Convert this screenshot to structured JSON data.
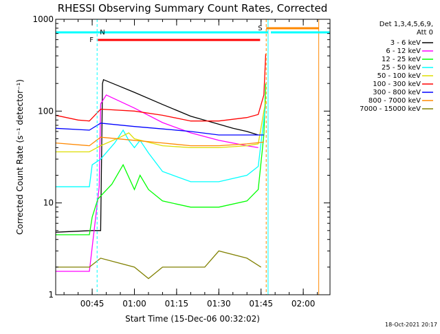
{
  "chart_data": {
    "type": "line",
    "title": "RHESSI Observing Summary Count Rates, Corrected",
    "xlabel": "Start Time (15-Dec-06 00:32:02)",
    "ylabel": "Corrected Count Rate (s⁻¹ detector⁻¹)",
    "y_scale": "log",
    "ylim": [
      1,
      1000
    ],
    "y_tick_labels": [
      "1",
      "10",
      "100",
      "1000"
    ],
    "xlim": [
      "00:32:02",
      "02:09:30"
    ],
    "x_tick_labels": [
      "00:45",
      "01:00",
      "01:15",
      "01:30",
      "01:45",
      "02:00"
    ],
    "legend_title": "Det 1,3,4,5,6,9,",
    "legend_subtitle": "Att 0",
    "legend_position": "right",
    "colors": {
      "band_3_6": "#000000",
      "band_6_12": "#ff00ff",
      "band_12_25": "#00ff00",
      "band_25_50": "#00ffff",
      "band_50_100": "#dddd00",
      "band_100_300": "#ff0000",
      "band_300_800": "#0000ff",
      "band_800_7000": "#ff8800",
      "band_7000_15000": "#808000",
      "saa": "#00ffff",
      "flare": "#ff0000",
      "night": "#ff8800"
    },
    "series": [
      {
        "name": "3 - 6 keV",
        "color": "#000000",
        "x": [
          "00:32:02",
          "00:45:00",
          "00:48:00",
          "00:48:40",
          "00:49:00",
          "00:55:00",
          "01:00:00",
          "01:10:00",
          "01:20:00",
          "01:30:00",
          "01:35:00",
          "01:40:00",
          "01:44:00"
        ],
        "y": [
          4.8,
          5.0,
          5.0,
          200,
          220,
          185,
          160,
          118,
          88,
          72,
          65,
          60,
          55
        ]
      },
      {
        "name": "6 - 12 keV",
        "color": "#ff00ff",
        "x": [
          "00:32:02",
          "00:44:00",
          "00:47:30",
          "00:48:00",
          "00:50:00",
          "01:00:00",
          "01:10:00",
          "01:20:00",
          "01:30:00",
          "01:40:00",
          "01:44:00"
        ],
        "y": [
          1.8,
          1.8,
          15,
          120,
          150,
          108,
          75,
          58,
          48,
          42,
          40
        ]
      },
      {
        "name": "12 - 25 keV",
        "color": "#00ff00",
        "x": [
          "00:32:02",
          "00:44:00",
          "00:45:00",
          "00:47:00",
          "00:52:00",
          "00:56:00",
          "01:00:00",
          "01:02:00",
          "01:05:00",
          "01:10:00",
          "01:20:00",
          "01:30:00",
          "01:40:00",
          "01:44:00",
          "01:46:00",
          "01:46:40"
        ],
        "y": [
          4.5,
          4.5,
          7,
          11,
          16,
          26,
          14,
          20,
          14,
          10.5,
          9,
          9,
          10.5,
          14,
          55,
          200
        ]
      },
      {
        "name": "25 - 50 keV",
        "color": "#00ffff",
        "x": [
          "00:32:02",
          "00:44:00",
          "00:45:00",
          "00:48:00",
          "00:53:00",
          "00:56:00",
          "00:58:00",
          "01:00:00",
          "01:02:00",
          "01:05:00",
          "01:10:00",
          "01:20:00",
          "01:30:00",
          "01:40:00",
          "01:44:00",
          "01:46:40"
        ],
        "y": [
          15,
          15,
          26,
          30,
          45,
          62,
          48,
          40,
          48,
          35,
          22,
          17,
          17,
          20,
          25,
          120
        ]
      },
      {
        "name": "50 - 100 keV",
        "color": "#dddd00",
        "x": [
          "00:32:02",
          "00:44:00",
          "00:48:00",
          "00:55:00",
          "00:58:00",
          "01:00:00",
          "01:10:00",
          "01:20:00",
          "01:30:00",
          "01:40:00",
          "01:44:00",
          "01:46:40"
        ],
        "y": [
          36,
          36,
          42,
          52,
          58,
          50,
          42,
          40,
          40,
          42,
          44,
          130
        ]
      },
      {
        "name": "100 - 300 keV",
        "color": "#ff0000",
        "x": [
          "00:32:02",
          "00:40:00",
          "00:44:00",
          "00:48:00",
          "01:00:00",
          "01:10:00",
          "01:20:00",
          "01:30:00",
          "01:40:00",
          "01:44:00",
          "01:46:00",
          "01:46:40"
        ],
        "y": [
          90,
          80,
          78,
          105,
          100,
          90,
          78,
          78,
          85,
          92,
          150,
          420
        ]
      },
      {
        "name": "300 - 800 keV",
        "color": "#0000ff",
        "x": [
          "00:32:02",
          "00:44:00",
          "00:48:00",
          "01:00:00",
          "01:10:00",
          "01:20:00",
          "01:30:00",
          "01:40:00",
          "01:46:00"
        ],
        "y": [
          65,
          62,
          74,
          68,
          64,
          60,
          55,
          55,
          55
        ]
      },
      {
        "name": "800 - 7000 keV",
        "color": "#ff8800",
        "x": [
          "00:32:02",
          "00:44:00",
          "00:48:00",
          "01:00:00",
          "01:10:00",
          "01:20:00",
          "01:30:00",
          "01:40:00",
          "01:46:00"
        ],
        "y": [
          45,
          42,
          52,
          48,
          45,
          42,
          42,
          44,
          46
        ]
      },
      {
        "name": "7000 - 15000 keV",
        "color": "#808000",
        "x": [
          "00:32:02",
          "00:44:00",
          "00:48:00",
          "01:00:00",
          "01:05:00",
          "01:10:00",
          "01:20:00",
          "01:25:00",
          "01:30:00",
          "01:40:00",
          "01:45:00"
        ],
        "y": [
          2,
          2,
          2.5,
          2,
          1.5,
          2,
          2,
          2,
          3,
          2.5,
          2
        ]
      }
    ],
    "annotations": [
      {
        "label": "N",
        "color": "#00ffff",
        "start": "00:46:45",
        "end": "01:47:30"
      },
      {
        "label": "F",
        "color": "#ff0000",
        "start": "00:47:00",
        "end": "01:44:40"
      },
      {
        "label": "S",
        "color": "#ff8800",
        "start": "01:46:50",
        "end": "02:05:30"
      }
    ],
    "footer_date": "18-Oct-2021 20:17"
  }
}
